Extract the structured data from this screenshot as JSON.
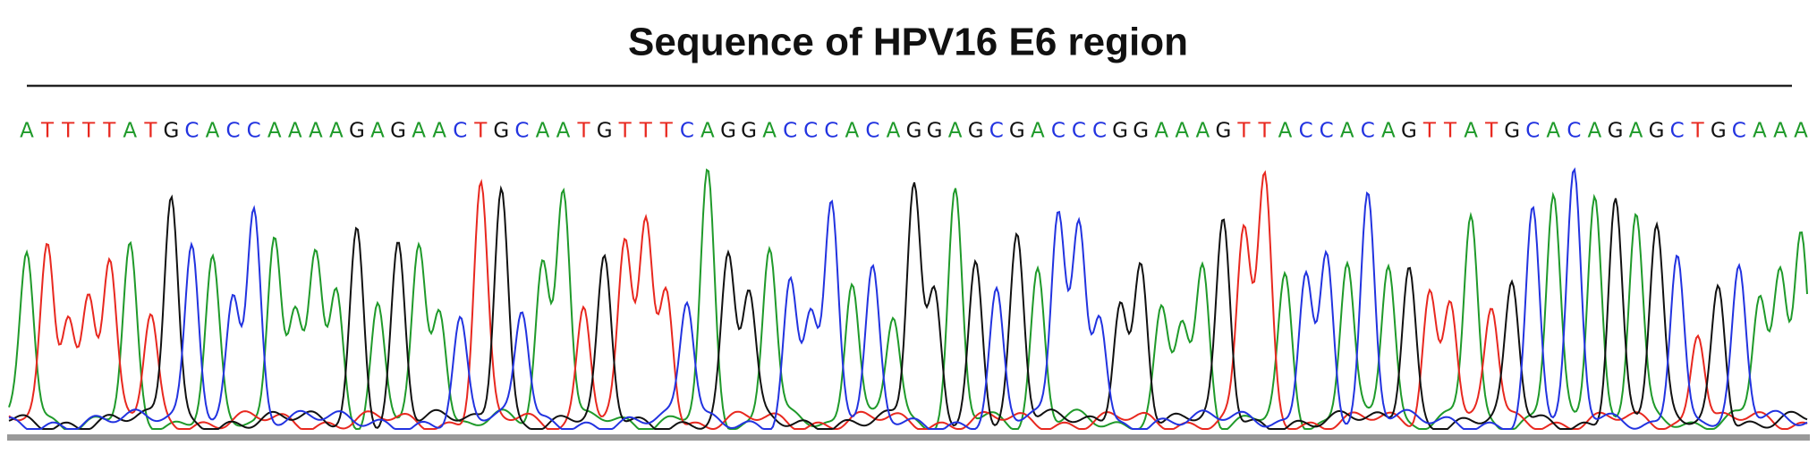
{
  "title": "Sequence of HPV16 E6 region",
  "bases": [
    "A",
    "T",
    "T",
    "T",
    "T",
    "A",
    "T",
    "G",
    "C",
    "A",
    "C",
    "C",
    "A",
    "A",
    "A",
    "A",
    "G",
    "A",
    "G",
    "A",
    "A",
    "C",
    "T",
    "G",
    "C",
    "A",
    "A",
    "T",
    "G",
    "T",
    "T",
    "T",
    "C",
    "A",
    "G",
    "G",
    "A",
    "C",
    "C",
    "C",
    "A",
    "C",
    "A",
    "G",
    "G",
    "A",
    "G",
    "C",
    "G",
    "A",
    "C",
    "C",
    "C",
    "G",
    "G",
    "A",
    "A",
    "A",
    "G",
    "T",
    "T",
    "A",
    "C",
    "C",
    "A",
    "C",
    "A",
    "G",
    "T",
    "T",
    "A",
    "T",
    "G",
    "C",
    "A",
    "C",
    "A",
    "G",
    "A",
    "G",
    "C",
    "T",
    "G",
    "C",
    "A",
    "A",
    "A"
  ],
  "base_colors": {
    "A": "#1f9a2a",
    "T": "#e8281f",
    "G": "#111111",
    "C": "#2233e0"
  }
}
